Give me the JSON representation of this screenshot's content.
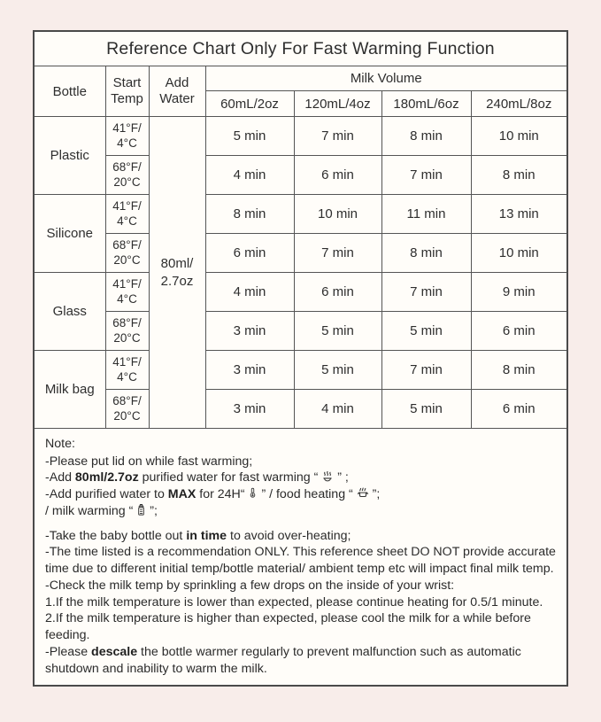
{
  "colors": {
    "page_bg": "#f8edea",
    "card_bg": "#fffdf9",
    "grid_line": "#555555",
    "text": "#2e2e2e"
  },
  "title": "Reference Chart Only For Fast Warming Function",
  "table": {
    "headers": {
      "bottle": "Bottle",
      "start_temp_line1": "Start",
      "start_temp_line2": "Temp",
      "add_water_line1": "Add",
      "add_water_line2": "Water",
      "milk_volume": "Milk Volume",
      "volumes": [
        "60mL/2oz",
        "120mL/4oz",
        "180mL/6oz",
        "240mL/8oz"
      ]
    },
    "add_water_value_line1": "80ml/",
    "add_water_value_line2": "2.7oz",
    "groups": [
      {
        "bottle": "Plastic",
        "rows": [
          {
            "temp": [
              "41°F/",
              "4°C"
            ],
            "times": [
              "5 min",
              "7 min",
              "8 min",
              "10 min"
            ]
          },
          {
            "temp": [
              "68°F/",
              "20°C"
            ],
            "times": [
              "4 min",
              "6 min",
              "7 min",
              "8 min"
            ]
          }
        ]
      },
      {
        "bottle": "Silicone",
        "rows": [
          {
            "temp": [
              "41°F/",
              "4°C"
            ],
            "times": [
              "8 min",
              "10 min",
              "11 min",
              "13 min"
            ]
          },
          {
            "temp": [
              "68°F/",
              "20°C"
            ],
            "times": [
              "6 min",
              "7 min",
              "8 min",
              "10 min"
            ]
          }
        ]
      },
      {
        "bottle": "Glass",
        "rows": [
          {
            "temp": [
              "41°F/",
              "4°C"
            ],
            "times": [
              "4 min",
              "6 min",
              "7 min",
              "9 min"
            ]
          },
          {
            "temp": [
              "68°F/",
              "20°C"
            ],
            "times": [
              "3 min",
              "5 min",
              "5 min",
              "6 min"
            ]
          }
        ]
      },
      {
        "bottle": "Milk bag",
        "rows": [
          {
            "temp": [
              "41°F/",
              "4°C"
            ],
            "times": [
              "3 min",
              "5 min",
              "7 min",
              "8 min"
            ]
          },
          {
            "temp": [
              "68°F/",
              "20°C"
            ],
            "times": [
              "3 min",
              "4 min",
              "5 min",
              "6 min"
            ]
          }
        ]
      }
    ]
  },
  "note": {
    "label": "Note:",
    "lines": [
      {
        "segments": [
          {
            "t": "-Please put lid on while fast warming;"
          }
        ]
      },
      {
        "segments": [
          {
            "t": "-Add "
          },
          {
            "t": "80ml/2.7oz",
            "b": true
          },
          {
            "t": " purified water for fast warming “"
          },
          {
            "icon": "fast-warming-icon"
          },
          {
            "t": "” ;"
          }
        ]
      },
      {
        "segments": [
          {
            "t": "-Add purified water to "
          },
          {
            "t": "MAX",
            "b": true
          },
          {
            "t": " for 24H“"
          },
          {
            "icon": "thermometer-icon"
          },
          {
            "t": "” / food heating “"
          },
          {
            "icon": "food-heating-icon"
          },
          {
            "t": "”;"
          }
        ]
      },
      {
        "segments": [
          {
            "t": "/ milk warming “"
          },
          {
            "icon": "milk-warming-bottle-icon"
          },
          {
            "t": "”;"
          }
        ],
        "gap_after": true
      },
      {
        "segments": [
          {
            "t": "-Take the baby bottle out "
          },
          {
            "t": "in time",
            "b": true
          },
          {
            "t": " to avoid over-heating;"
          }
        ]
      },
      {
        "segments": [
          {
            "t": "-The time listed is a recommendation ONLY. This reference sheet DO NOT provide accurate time due to different initial temp/bottle material/ ambient temp etc will impact final milk temp."
          }
        ]
      },
      {
        "segments": [
          {
            "t": "-Check the milk temp by sprinkling a few drops on the inside of your wrist:"
          }
        ]
      },
      {
        "segments": [
          {
            "t": "1.If the milk temperature is lower than expected, please continue heating for 0.5/1 minute."
          }
        ]
      },
      {
        "segments": [
          {
            "t": "2.If the milk temperature is higher than expected, please cool the milk for a while before feeding."
          }
        ]
      },
      {
        "segments": [
          {
            "t": "-Please "
          },
          {
            "t": "descale",
            "b": true
          },
          {
            "t": " the bottle warmer regularly to prevent malfunction such as automatic shutdown and inability to warm the milk."
          }
        ]
      }
    ]
  }
}
